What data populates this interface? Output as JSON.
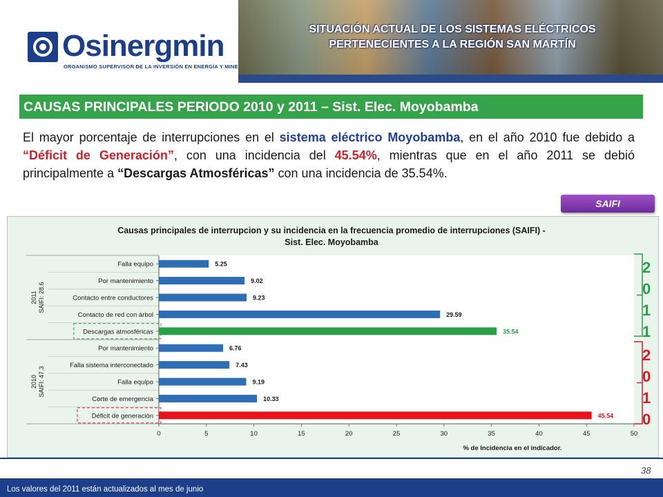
{
  "header": {
    "logo_name": "Osinergmin",
    "logo_subtitle": "ORGANISMO SUPERVISOR DE LA INVERSIÓN EN ENERGÍA Y MINERÍA",
    "banner_title_line1": "SITUACIÓN ACTUAL DE LOS SISTEMAS ELÉCTRICOS",
    "banner_title_line2": "PERTENECIENTES A LA REGIÓN SAN MARTÍN"
  },
  "section": {
    "title": "CAUSAS PRINCIPALES PERIODO 2010 y 2011 – Sist. Elec. Moyobamba"
  },
  "paragraph": {
    "p1": "El mayor porcentaje de interrupciones en el ",
    "p2": "sistema eléctrico Moyobamba",
    "p3": ", en el año 2010 fue debido a ",
    "p4": "“Déficit de Generación”",
    "p5": ", con una incidencia del ",
    "p6": "45.54%",
    "p7": ", mientras que en el año 2011 se debió principalmente a ",
    "p8": "“Descargas Atmosféricas”",
    "p9": " con una incidencia de 35.54%."
  },
  "saifi_button": "SAIFI",
  "chart_data": {
    "type": "bar",
    "orientation": "horizontal",
    "title_line1": "Causas principales de interrupcion y su incidencia en  la frecuencia promedio de interrupciones (SAIFI) -",
    "title_line2": "Sist. Elec. Moyobamba",
    "xlabel": "% de Incidencia en el indicador.",
    "xlim": [
      0,
      50
    ],
    "xticks": [
      "0",
      "5",
      "10",
      "15",
      "20",
      "25",
      "30",
      "35",
      "40",
      "45",
      "50"
    ],
    "groups": [
      {
        "label_line1": "2011",
        "label_line2": "SAIFI: 28.6",
        "categories": [
          "Falla equipo",
          "Por mantenimiento",
          "Contacto entre conductores",
          "Contacto de red con árbol",
          "Descargas atmosféricas"
        ],
        "values": [
          5.25,
          9.02,
          9.23,
          29.59,
          35.54
        ],
        "value_labels": [
          "5.25",
          "9.02",
          "9.23",
          "29.59",
          "35.54"
        ],
        "highlight_index": 4,
        "highlight_color": "#2ca048"
      },
      {
        "label_line1": "2010",
        "label_line2": "SAIFI: 47.3",
        "categories": [
          "Por mantenimiento",
          "Falla sistema interconectado",
          "Falla equipo",
          "Corte de emergencia",
          "Déficit de generación"
        ],
        "values": [
          6.76,
          7.43,
          9.19,
          10.33,
          45.54
        ],
        "value_labels": [
          "6.76",
          "7.43",
          "9.19",
          "10.33",
          "45.54"
        ],
        "highlight_index": 4,
        "highlight_color": "#e8141c"
      }
    ],
    "bar_color": "#2f6db5",
    "grid": false
  },
  "year_brackets": {
    "y2011": [
      "2",
      "0",
      "1",
      "1"
    ],
    "y2011_color": "#2ca048",
    "y2010": [
      "2",
      "0",
      "1",
      "0"
    ],
    "y2010_color": "#d0202a"
  },
  "footer": {
    "page_number": "38",
    "note": "Los valores del 2011 están actualizados al mes de junio"
  }
}
